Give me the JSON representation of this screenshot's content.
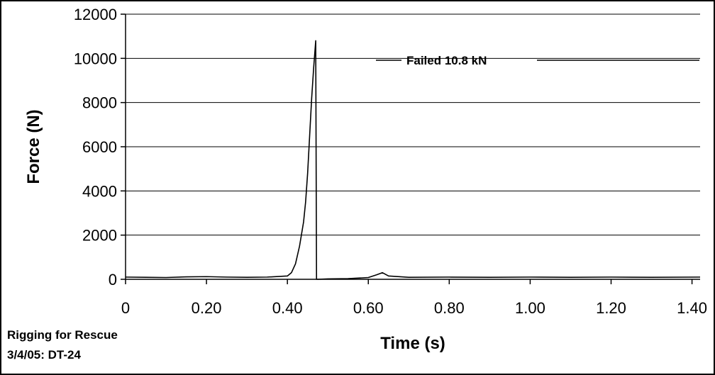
{
  "chart_data": {
    "type": "line",
    "title": "",
    "xlabel": "Time (s)",
    "ylabel": "Force (N)",
    "xlim": [
      0,
      1.42
    ],
    "ylim": [
      0,
      12000
    ],
    "x_ticks": [
      0,
      0.2,
      0.4,
      0.6,
      0.8,
      1.0,
      1.2,
      1.4
    ],
    "x_tick_labels": [
      "0",
      "0.20",
      "0.40",
      "0.60",
      "0.80",
      "1.00",
      "1.20",
      "1.40"
    ],
    "y_ticks": [
      0,
      2000,
      4000,
      6000,
      8000,
      10000,
      12000
    ],
    "y_tick_labels": [
      "0",
      "2000",
      "4000",
      "6000",
      "8000",
      "10000",
      "12000"
    ],
    "grid": "horizontal",
    "series": [
      {
        "color": "#000000",
        "x": [
          0,
          0.05,
          0.1,
          0.15,
          0.2,
          0.25,
          0.3,
          0.35,
          0.4,
          0.41,
          0.42,
          0.43,
          0.44,
          0.445,
          0.45,
          0.455,
          0.46,
          0.465,
          0.47,
          0.472,
          0.475,
          0.5,
          0.55,
          0.6,
          0.62,
          0.635,
          0.65,
          0.7,
          0.8,
          0.9,
          1.0,
          1.1,
          1.2,
          1.3,
          1.42
        ],
        "y": [
          100,
          90,
          80,
          110,
          120,
          100,
          90,
          100,
          150,
          300,
          700,
          1500,
          2600,
          3500,
          4800,
          6500,
          8200,
          9600,
          10800,
          0,
          0,
          20,
          30,
          80,
          200,
          300,
          150,
          90,
          100,
          90,
          100,
          90,
          100,
          90,
          100
        ]
      }
    ],
    "annotations": [
      {
        "text": "Failed 10.8 kN",
        "x": 0.72,
        "y": 10200
      }
    ]
  },
  "footnote": {
    "line1": "Rigging for Rescue",
    "line2": "3/4/05: DT-24"
  }
}
